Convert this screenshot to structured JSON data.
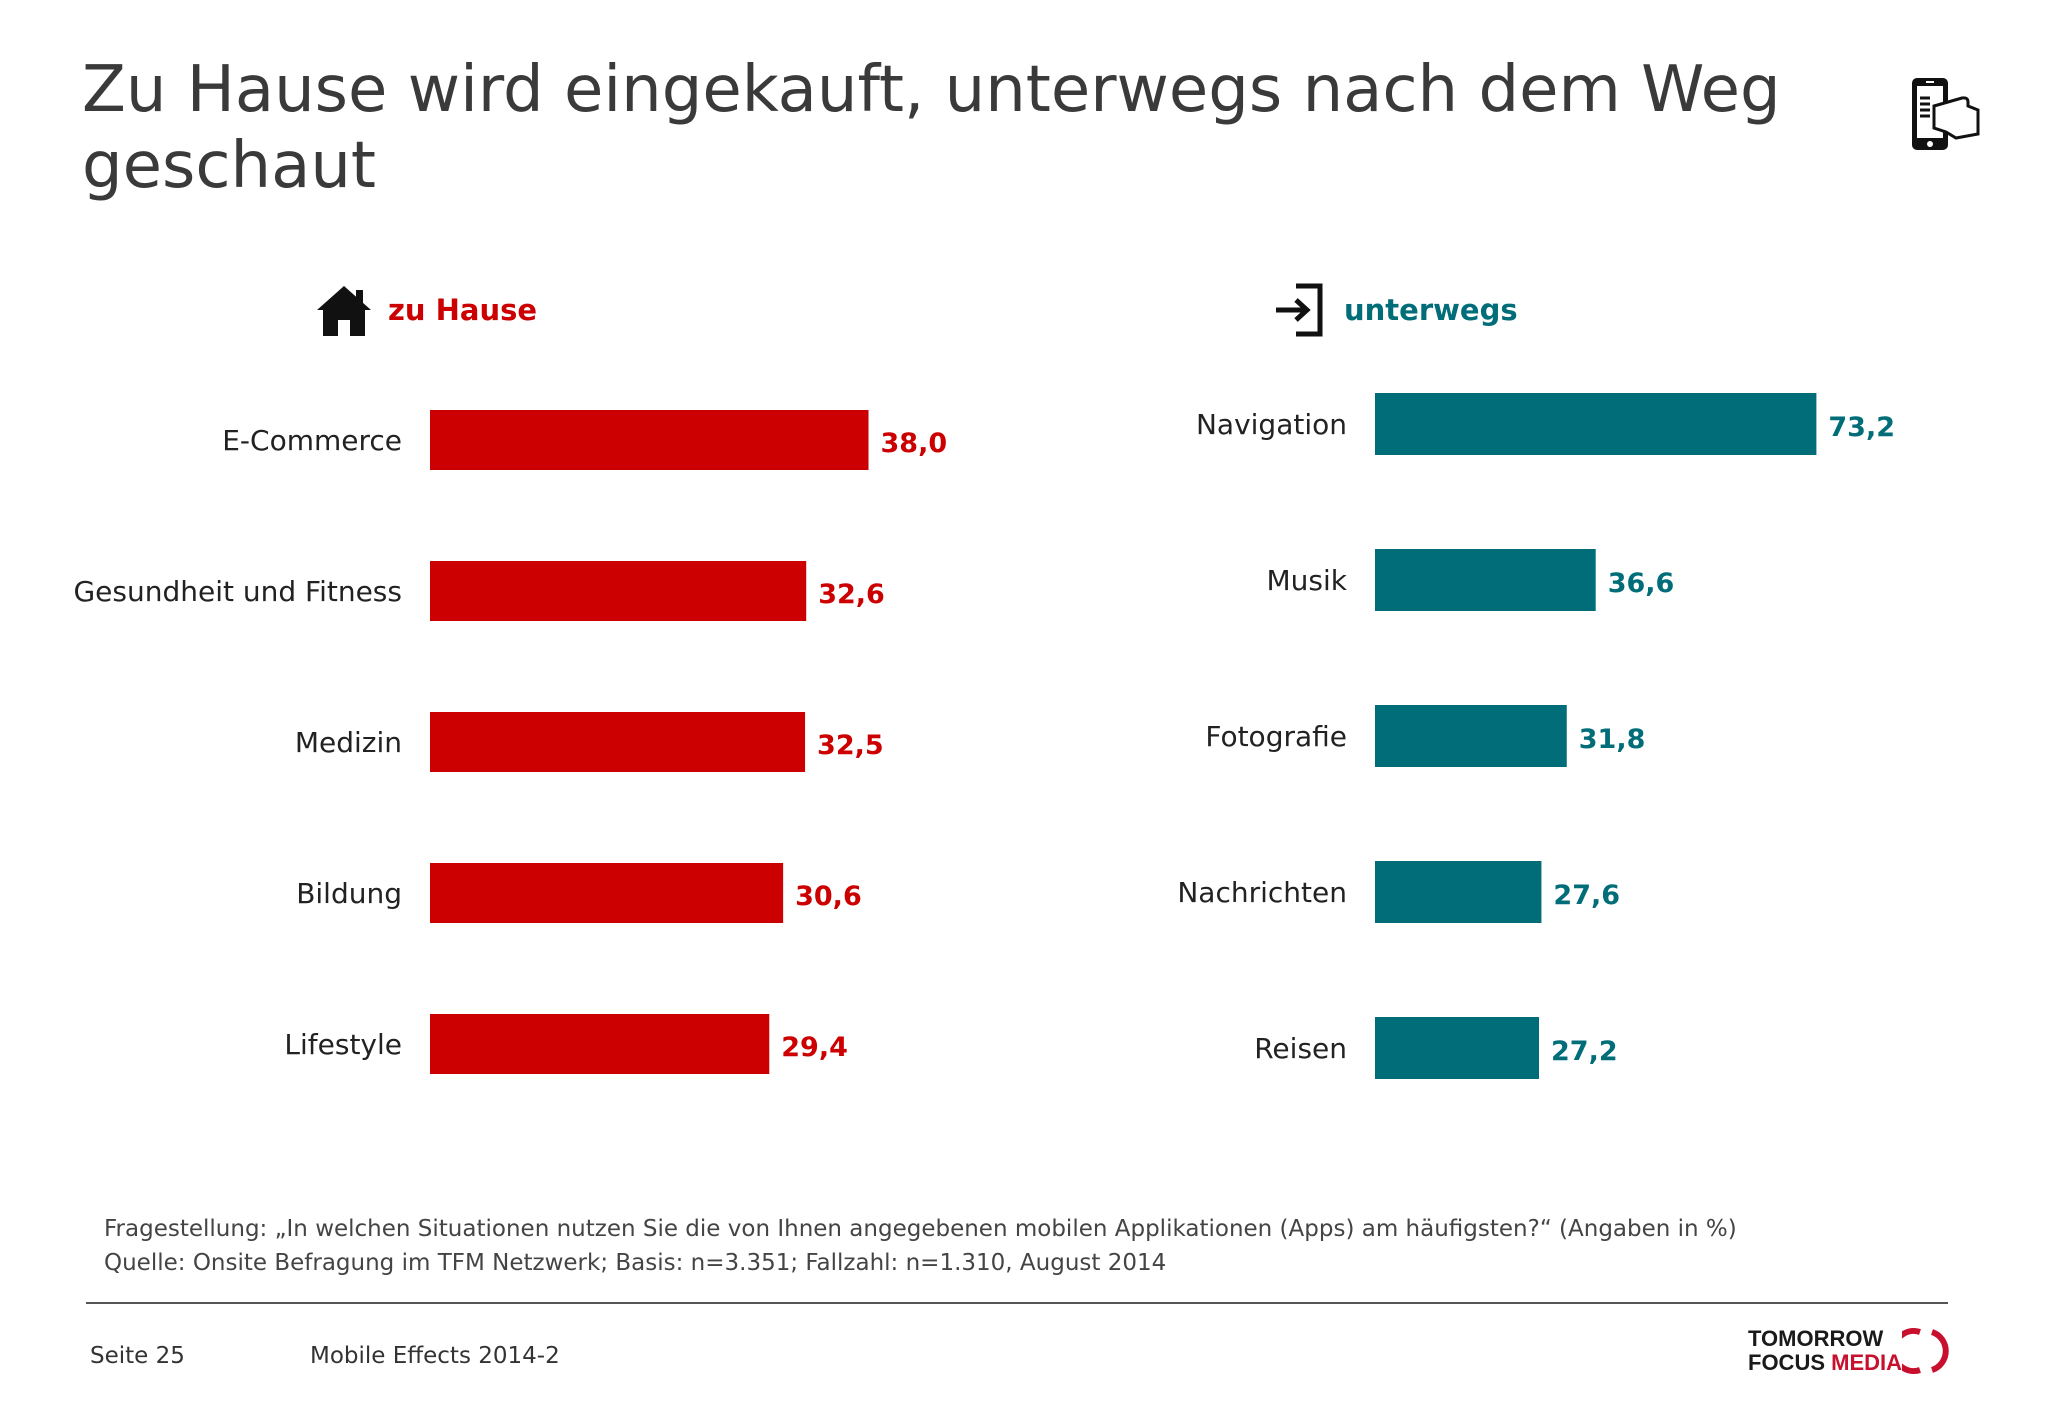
{
  "title_line1": "Zu Hause wird eingekauft, unterwegs nach dem Weg",
  "title_line2": "geschaut",
  "icons": {
    "title": "smartphone-hand-icon",
    "left_section": "house-icon",
    "right_section": "sign-in-arrow-icon",
    "logo": "tomorrow-focus-media-logo"
  },
  "colors": {
    "home": "#cc0000",
    "mobile": "#006d78",
    "text": "#222222"
  },
  "chart_data": [
    {
      "type": "bar",
      "orientation": "horizontal",
      "section_label": "zu Hause",
      "color": "#cc0000",
      "categories": [
        "E-Commerce",
        "Gesundheit und Fitness",
        "Medizin",
        "Bildung",
        "Lifestyle"
      ],
      "values": [
        38.0,
        32.6,
        32.5,
        30.6,
        29.4
      ],
      "value_labels": [
        "38,0",
        "32,6",
        "32,5",
        "30,6",
        "29,4"
      ],
      "xlim": [
        0,
        80
      ],
      "grid": false
    },
    {
      "type": "bar",
      "orientation": "horizontal",
      "section_label": "unterwegs",
      "color": "#006d78",
      "categories": [
        "Navigation",
        "Musik",
        "Fotografie",
        "Nachrichten",
        "Reisen"
      ],
      "values": [
        73.2,
        36.6,
        31.8,
        27.6,
        27.2
      ],
      "value_labels": [
        "73,2",
        "36,6",
        "31,8",
        "27,6",
        "27,2"
      ],
      "xlim": [
        0,
        80
      ],
      "grid": false
    }
  ],
  "footnote": {
    "question": "Fragestellung: „In welchen Situationen nutzen Sie die von Ihnen angegebenen mobilen Applikationen (Apps) am häufigsten?“ (Angaben in %)",
    "source": "Quelle: Onsite Befragung im TFM Netzwerk; Basis: n=3.351; Fallzahl: n=1.310, August 2014"
  },
  "footer": {
    "page": "Seite 25",
    "document": "Mobile Effects 2014-2",
    "logo_line1": "TOMORROW",
    "logo_line2a": "FOCUS ",
    "logo_line2b": "MEDIA"
  }
}
